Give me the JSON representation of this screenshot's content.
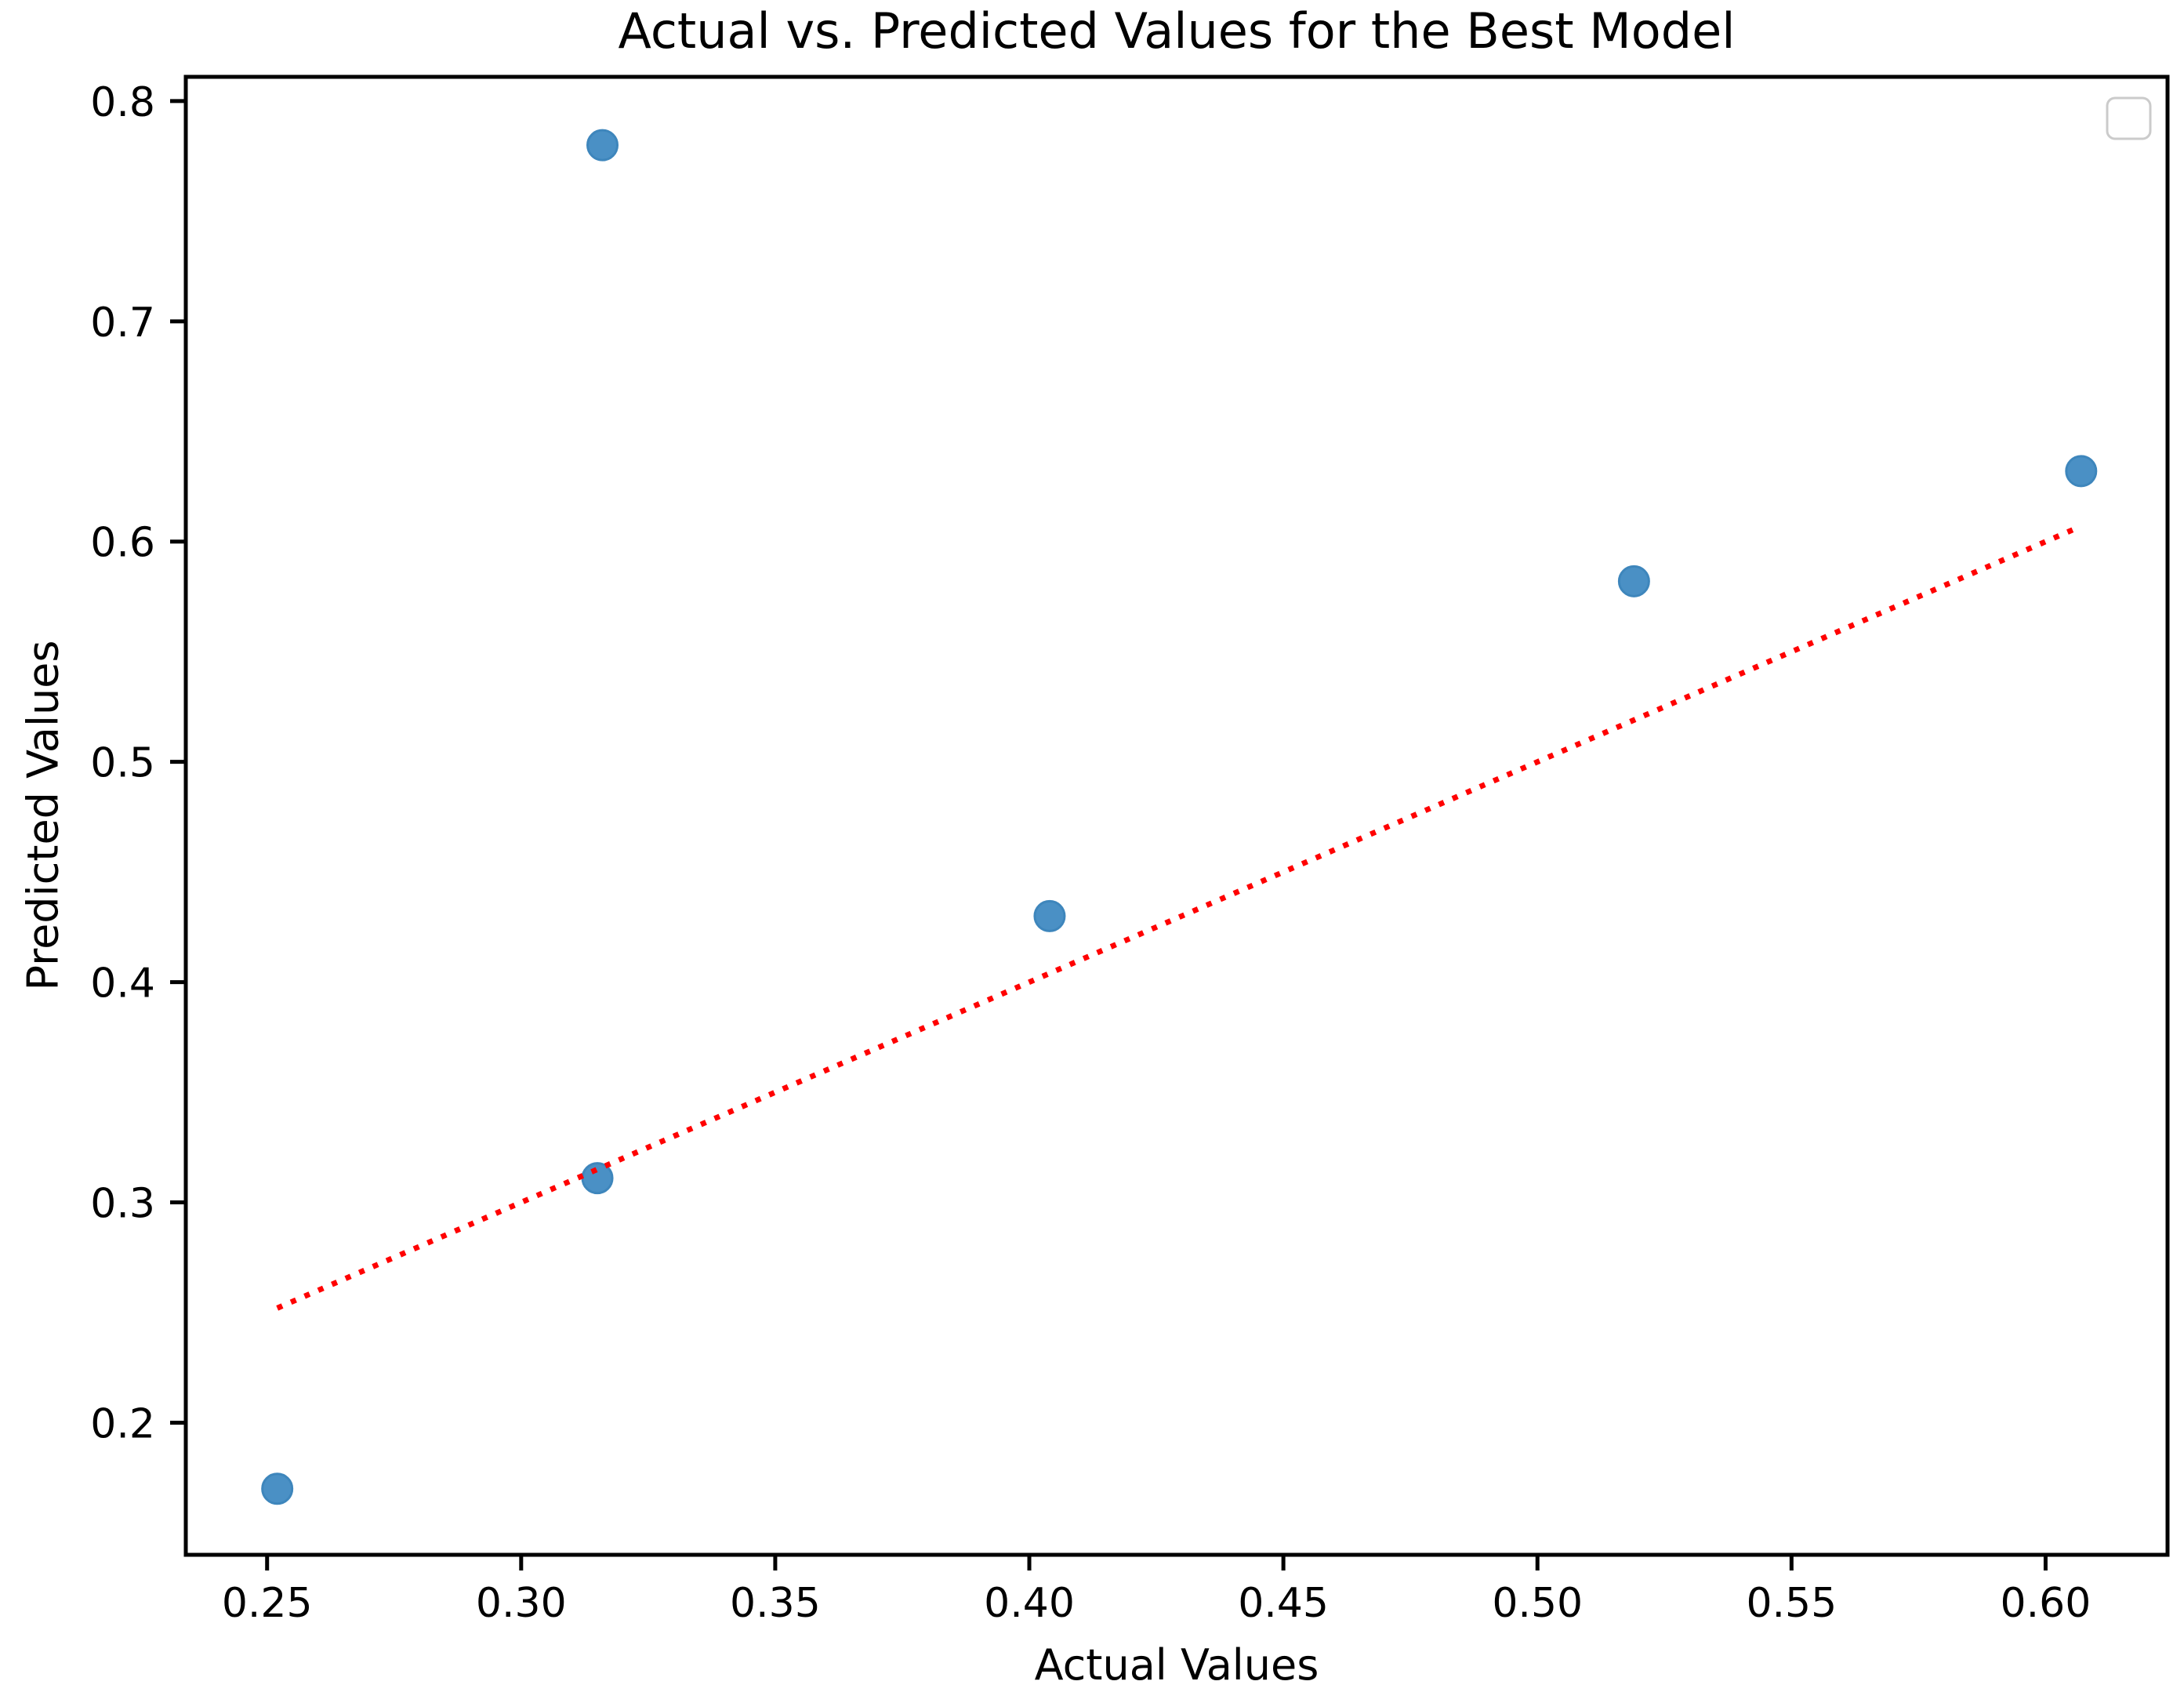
{
  "chart_data": {
    "type": "scatter",
    "title": "Actual vs. Predicted Values for the Best Model",
    "xlabel": "Actual Values",
    "ylabel": "Predicted Values",
    "xlim": [
      0.234,
      0.624
    ],
    "ylim": [
      0.14,
      0.811
    ],
    "grid": false,
    "background_color": "#ffffff",
    "x_ticks": [
      {
        "value": 0.25,
        "label": "0.25"
      },
      {
        "value": 0.3,
        "label": "0.30"
      },
      {
        "value": 0.35,
        "label": "0.35"
      },
      {
        "value": 0.4,
        "label": "0.40"
      },
      {
        "value": 0.45,
        "label": "0.45"
      },
      {
        "value": 0.5,
        "label": "0.50"
      },
      {
        "value": 0.55,
        "label": "0.55"
      },
      {
        "value": 0.6,
        "label": "0.60"
      }
    ],
    "y_ticks": [
      {
        "value": 0.8,
        "label": "0.8"
      },
      {
        "value": 0.7,
        "label": "0.7"
      },
      {
        "value": 0.6,
        "label": "0.6"
      },
      {
        "value": 0.5,
        "label": "0.5"
      },
      {
        "value": 0.4,
        "label": "0.4"
      },
      {
        "value": 0.3,
        "label": "0.3"
      },
      {
        "value": 0.2,
        "label": "0.2"
      }
    ],
    "series": [
      {
        "name": "actual-vs-predicted-points",
        "type": "scatter",
        "marker": "circle",
        "color": "#4A90C5",
        "points": [
          [
            0.252,
            0.17
          ],
          [
            0.316,
            0.78
          ],
          [
            0.315,
            0.311
          ],
          [
            0.404,
            0.43
          ],
          [
            0.519,
            0.582
          ],
          [
            0.607,
            0.632
          ]
        ]
      },
      {
        "name": "identity-line",
        "type": "line",
        "linestyle": "dotted",
        "color": "#FF0000",
        "points": [
          [
            0.252,
            0.252
          ],
          [
            0.607,
            0.607
          ]
        ]
      }
    ],
    "legend": {
      "position": "upper right",
      "entries": [],
      "empty_box": true,
      "border_color": "#CBCBCB"
    }
  }
}
